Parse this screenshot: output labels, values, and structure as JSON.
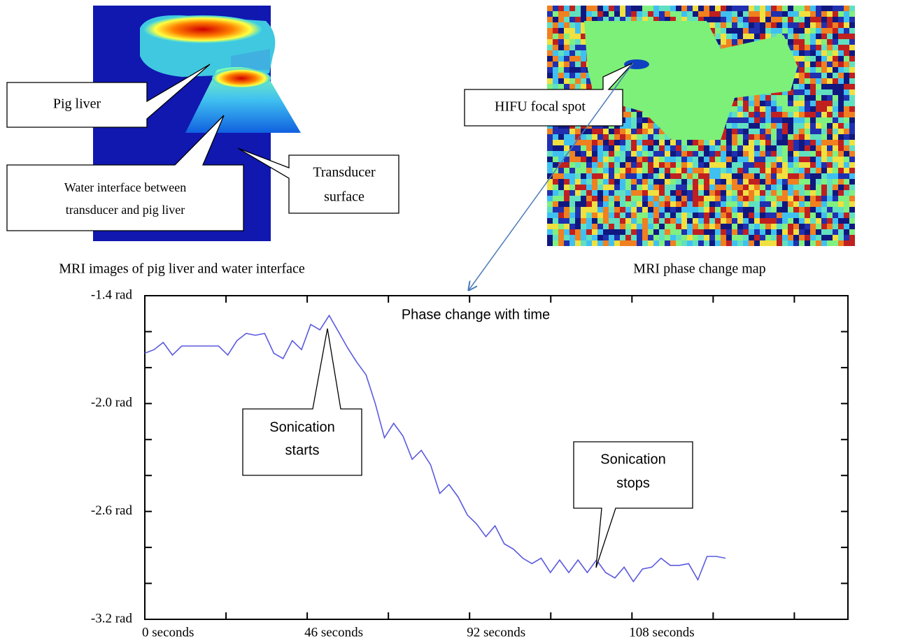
{
  "panels": {
    "left_caption": "MRI images of pig liver and water interface",
    "right_caption": "MRI phase change map",
    "pig_liver": "Pig liver",
    "water_interface": [
      "Water interface between",
      "transducer and pig liver"
    ],
    "transducer": [
      "Transducer",
      "surface"
    ],
    "focal_spot": "HIFU focal spot"
  },
  "chart_data": {
    "type": "line",
    "title": "Phase change with time",
    "values": [
      -1.72,
      -1.7,
      -1.66,
      -1.73,
      -1.68,
      -1.68,
      -1.68,
      -1.68,
      -1.68,
      -1.73,
      -1.65,
      -1.61,
      -1.62,
      -1.61,
      -1.72,
      -1.75,
      -1.65,
      -1.7,
      -1.56,
      -1.59,
      -1.51,
      -1.6,
      -1.69,
      -1.77,
      -1.84,
      -2.0,
      -2.19,
      -2.11,
      -2.18,
      -2.31,
      -2.26,
      -2.34,
      -2.5,
      -2.45,
      -2.52,
      -2.62,
      -2.67,
      -2.74,
      -2.68,
      -2.78,
      -2.81,
      -2.86,
      -2.89,
      -2.86,
      -2.94,
      -2.87,
      -2.94,
      -2.87,
      -2.94,
      -2.87,
      -2.94,
      -2.97,
      -2.91,
      -2.99,
      -2.92,
      -2.91,
      -2.86,
      -2.9,
      -2.9,
      -2.89,
      -2.98,
      -2.85,
      -2.85,
      -2.86
    ],
    "color": "#5a5ae0",
    "ylim": [
      -3.2,
      -1.4
    ],
    "yticks": [
      {
        "value": -1.4,
        "label": "-1.4 rad"
      },
      {
        "value": -2.0,
        "label": "-2.0 rad"
      },
      {
        "value": -2.6,
        "label": "-2.6 rad"
      },
      {
        "value": -3.2,
        "label": "-3.2 rad"
      }
    ],
    "yminor_ticks": [
      -1.6,
      -1.8,
      -2.2,
      -2.4,
      -2.8,
      -3.0
    ],
    "xtick_labels": [
      "0 seconds",
      "46 seconds",
      "92 seconds",
      "108 seconds"
    ],
    "annotations": [
      [
        "Sonication",
        "starts"
      ],
      [
        "Sonication",
        "stops"
      ]
    ]
  }
}
